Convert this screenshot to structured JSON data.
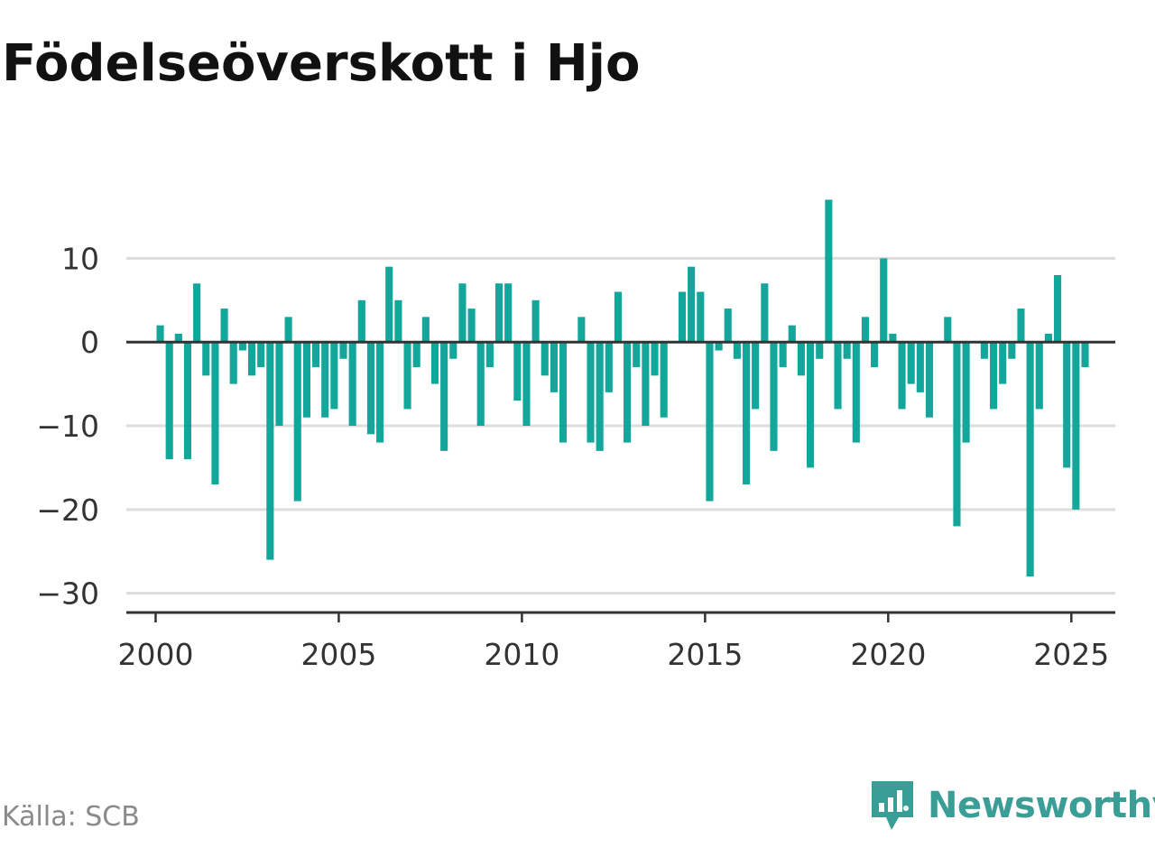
{
  "title": "Födelseöverskott i Hjo",
  "source": "Källa: SCB",
  "brand": {
    "name": "Newsworthy",
    "icon": "newsworthy-logo-icon",
    "color": "#3a9e97"
  },
  "colors": {
    "bar": "#13a69a",
    "grid": "#dddddd",
    "zero": "#333333",
    "axis": "#333333"
  },
  "chart_data": {
    "type": "bar",
    "xlabel": "",
    "ylabel": "",
    "xlim": [
      1999.2,
      2026.2
    ],
    "ylim": [
      -32.3,
      22
    ],
    "xticks": [
      2000,
      2005,
      2010,
      2015,
      2020,
      2025
    ],
    "yticks": [
      10,
      0,
      -10,
      -20,
      -30
    ],
    "ytick_labels": [
      "10",
      "0",
      "−10",
      "−20",
      "−30"
    ],
    "grid": true,
    "x": [
      2000.125,
      2000.375,
      2000.625,
      2000.875,
      2001.125,
      2001.375,
      2001.625,
      2001.875,
      2002.125,
      2002.375,
      2002.625,
      2002.875,
      2003.125,
      2003.375,
      2003.625,
      2003.875,
      2004.125,
      2004.375,
      2004.625,
      2004.875,
      2005.125,
      2005.375,
      2005.625,
      2005.875,
      2006.125,
      2006.375,
      2006.625,
      2006.875,
      2007.125,
      2007.375,
      2007.625,
      2007.875,
      2008.125,
      2008.375,
      2008.625,
      2008.875,
      2009.125,
      2009.375,
      2009.625,
      2009.875,
      2010.125,
      2010.375,
      2010.625,
      2010.875,
      2011.125,
      2011.375,
      2011.625,
      2011.875,
      2012.125,
      2012.375,
      2012.625,
      2012.875,
      2013.125,
      2013.375,
      2013.625,
      2013.875,
      2014.125,
      2014.375,
      2014.625,
      2014.875,
      2015.125,
      2015.375,
      2015.625,
      2015.875,
      2016.125,
      2016.375,
      2016.625,
      2016.875,
      2017.125,
      2017.375,
      2017.625,
      2017.875,
      2018.125,
      2018.375,
      2018.625,
      2018.875,
      2019.125,
      2019.375,
      2019.625,
      2019.875,
      2020.125,
      2020.375,
      2020.625,
      2020.875,
      2021.125,
      2021.375,
      2021.625,
      2021.875,
      2022.125,
      2022.375,
      2022.625,
      2022.875,
      2023.125,
      2023.375,
      2023.625,
      2023.875,
      2024.125,
      2024.375,
      2024.625,
      2024.875,
      2025.125,
      2025.375
    ],
    "values": [
      2,
      -14,
      1,
      -14,
      7,
      -4,
      -17,
      4,
      -5,
      -1,
      -4,
      -3,
      -26,
      -10,
      3,
      -19,
      -9,
      -3,
      -9,
      -8,
      -2,
      -10,
      5,
      -11,
      -12,
      9,
      5,
      -8,
      -3,
      3,
      -5,
      -13,
      -2,
      7,
      4,
      -10,
      -3,
      7,
      7,
      -7,
      -10,
      5,
      -4,
      -6,
      -12,
      0,
      3,
      -12,
      -13,
      -6,
      6,
      -12,
      -3,
      -10,
      -4,
      -9,
      0,
      6,
      9,
      6,
      -19,
      -1,
      4,
      -2,
      -17,
      -8,
      7,
      -13,
      -3,
      2,
      -4,
      -15,
      -2,
      17,
      -8,
      -2,
      -12,
      3,
      -3,
      10,
      1,
      -8,
      -5,
      -6,
      -9,
      0,
      3,
      -22,
      -12,
      0,
      -2,
      -8,
      -5,
      -2,
      4,
      -28,
      -8,
      1,
      8,
      -15,
      -20,
      -3
    ]
  }
}
